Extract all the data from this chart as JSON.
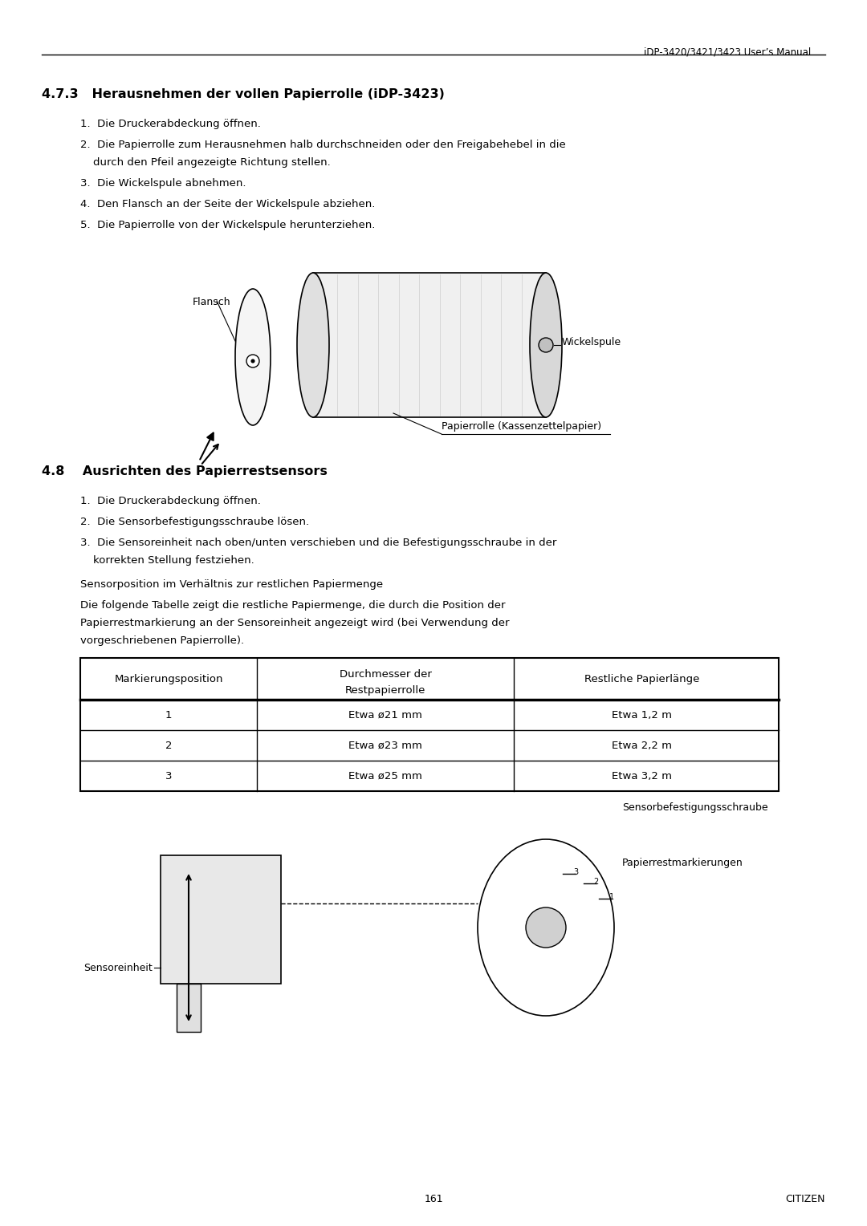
{
  "page_header": "iDP-3420/3421/3423 User’s Manual",
  "page_footer_num": "161",
  "page_footer_citizen": "CITIZEN",
  "section_473_title": "4.7.3   Herausnehmen der vollen Papierrolle (iDP-3423)",
  "section_473_items": [
    "1.  Die Druckerabdeckung öffnen.",
    "2.  Die Papierrolle zum Herausnehmen halb durchschneiden oder den Freigabehebel in die\n     durch den Pfeil angezeigte Richtung stellen.",
    "3.  Die Wickelspule abnehmen.",
    "4.  Den Flansch an der Seite der Wickelspule abziehen.",
    "5.  Die Papierrolle von der Wickelspule herunterziehen."
  ],
  "label_flansch": "Flansch",
  "label_wickelspule": "Wickelspule",
  "label_papierrolle": "Papierrolle (Kassenzettelpapier)",
  "section_48_title": "4.8    Ausrichten des Papierrestsensors",
  "section_48_items": [
    "1.  Die Druckerabdeckung öffnen.",
    "2.  Die Sensorbefestigungsschraube lösen.",
    "3.  Die Sensoreinheit nach oben/unten verschieben und die Befestigungsschraube in der\n     korrekten Stellung festziehen."
  ],
  "sensor_note1": "Sensorposition im Verhältnis zur restlichen Papiermenge",
  "sensor_note2": "Die folgende Tabelle zeigt die restliche Papiermenge, die durch die Position der\nPapierrestmarkierung an der Sensoreinheit angezeigt wird (bei Verwendung der\nvorgeschriebenen Papierrolle).",
  "table_headers": [
    "Markierungsposition",
    "Durchmesser der\nRestpapierrolle",
    "Restliche Papierlänge"
  ],
  "table_rows": [
    [
      "1",
      "Etwa ø21 mm",
      "Etwa 1,2 m"
    ],
    [
      "2",
      "Etwa ø23 mm",
      "Etwa 2,2 m"
    ],
    [
      "3",
      "Etwa ø25 mm",
      "Etwa 3,2 m"
    ]
  ],
  "label_sensorbefestigung": "Sensorbefestigungsschraube",
  "label_papierrestmarkierungen": "Papierrestmarkierungen",
  "label_sensoreinheit": "Sensoreinheit",
  "bg_color": "#ffffff",
  "text_color": "#000000",
  "header_line_color": "#000000"
}
